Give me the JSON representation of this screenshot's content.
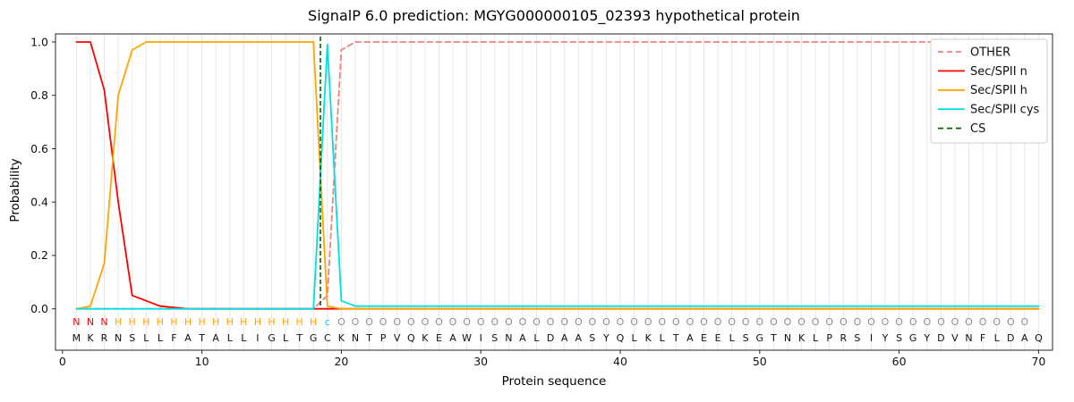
{
  "chart_data": {
    "type": "line",
    "title": "SignalP 6.0 prediction: MGYG000000105_02393 hypothetical protein",
    "xlabel": "Protein sequence",
    "ylabel": "Probability",
    "xlim": [
      -0.5,
      71
    ],
    "ylim": [
      -0.155,
      1.03
    ],
    "xticks": [
      0,
      10,
      20,
      30,
      40,
      50,
      60,
      70
    ],
    "yticks": [
      0,
      0.2,
      0.4,
      0.6,
      0.8,
      1
    ],
    "grid": {
      "vertical_every": 1,
      "color": "#e7e7e7"
    },
    "legend_position": "upper right",
    "x_start": 1,
    "sequence": "MKRNSLLFATALLIGLTGCKNTPVQKEAWISNALDAASYQLKLTAEELSGTNKLPRSIYSGYDVNFLDAQ",
    "region_labels": "NNNHHHHHHHHHHHHHHHcOOOOOOOOOOOOOOOOOOOOOOOOOOOOOOOOOOOOOOOOOOOOOOOOOO",
    "region_label_colors": {
      "N": "#ff0000",
      "H": "#ffa500",
      "c": "#00d5d5",
      "O": "#8c8c8c"
    },
    "series": [
      {
        "name": "OTHER",
        "color": "#f08080",
        "style": "dashed",
        "values": [
          0,
          0,
          0,
          0,
          0,
          0,
          0,
          0,
          0,
          0,
          0,
          0,
          0,
          0,
          0,
          0,
          0,
          0,
          0.05,
          0.97,
          1,
          1,
          1,
          1,
          1,
          1,
          1,
          1,
          1,
          1,
          1,
          1,
          1,
          1,
          1,
          1,
          1,
          1,
          1,
          1,
          1,
          1,
          1,
          1,
          1,
          1,
          1,
          1,
          1,
          1,
          1,
          1,
          1,
          1,
          1,
          1,
          1,
          1,
          1,
          1,
          1,
          1,
          1,
          1,
          1,
          1,
          1,
          1,
          1,
          1
        ]
      },
      {
        "name": "Sec/SPII n",
        "color": "#ff0000",
        "style": "solid",
        "values": [
          1,
          1,
          0.82,
          0.4,
          0.05,
          0.03,
          0.01,
          0.005,
          0,
          0,
          0,
          0,
          0,
          0,
          0,
          0,
          0,
          0,
          0,
          0,
          0,
          0,
          0,
          0,
          0,
          0,
          0,
          0,
          0,
          0,
          0,
          0,
          0,
          0,
          0,
          0,
          0,
          0,
          0,
          0,
          0,
          0,
          0,
          0,
          0,
          0,
          0,
          0,
          0,
          0,
          0,
          0,
          0,
          0,
          0,
          0,
          0,
          0,
          0,
          0,
          0,
          0,
          0,
          0,
          0,
          0,
          0,
          0,
          0,
          0
        ]
      },
      {
        "name": "Sec/SPII h",
        "color": "#ffa500",
        "style": "solid",
        "values": [
          0,
          0.01,
          0.17,
          0.8,
          0.97,
          1,
          1,
          1,
          1,
          1,
          1,
          1,
          1,
          1,
          1,
          1,
          1,
          1,
          0.01,
          0,
          0,
          0,
          0,
          0,
          0,
          0,
          0,
          0,
          0,
          0,
          0,
          0,
          0,
          0,
          0,
          0,
          0,
          0,
          0,
          0,
          0,
          0,
          0,
          0,
          0,
          0,
          0,
          0,
          0,
          0,
          0,
          0,
          0,
          0,
          0,
          0,
          0,
          0,
          0,
          0,
          0,
          0,
          0,
          0,
          0,
          0,
          0,
          0,
          0,
          0
        ]
      },
      {
        "name": "Sec/SPII cys",
        "color": "#00e0e0",
        "style": "solid",
        "values": [
          0,
          0,
          0,
          0,
          0,
          0,
          0,
          0,
          0,
          0,
          0,
          0,
          0,
          0,
          0,
          0,
          0,
          0,
          0.99,
          0.03,
          0.01,
          0.01,
          0.01,
          0.01,
          0.01,
          0.01,
          0.01,
          0.01,
          0.01,
          0.01,
          0.01,
          0.01,
          0.01,
          0.01,
          0.01,
          0.01,
          0.01,
          0.01,
          0.01,
          0.01,
          0.01,
          0.01,
          0.01,
          0.01,
          0.01,
          0.01,
          0.01,
          0.01,
          0.01,
          0.01,
          0.01,
          0.01,
          0.01,
          0.01,
          0.01,
          0.01,
          0.01,
          0.01,
          0.01,
          0.01,
          0.01,
          0.01,
          0.01,
          0.01,
          0.01,
          0.01,
          0.01,
          0.01,
          0.01,
          0.01
        ]
      }
    ],
    "cs_line": {
      "name": "CS",
      "color": "#006400",
      "style": "dashed",
      "x": 18.5
    }
  }
}
